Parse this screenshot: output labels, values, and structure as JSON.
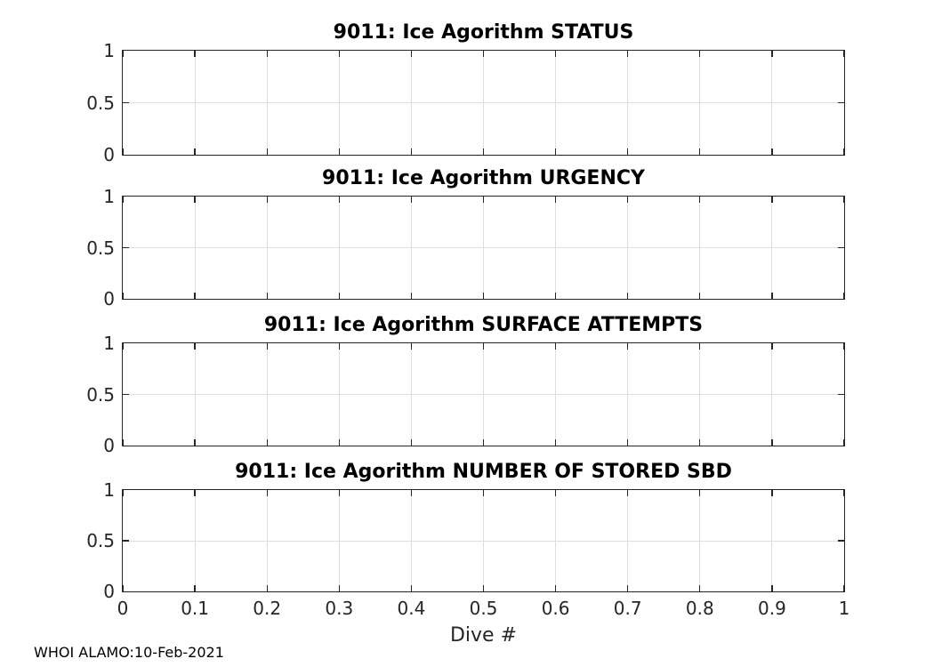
{
  "figure": {
    "background": "#ffffff",
    "axis_color": "#262626",
    "grid_color": "#dedede",
    "title_color": "#000000",
    "xlabel": "Dive #",
    "footer": "WHOI ALAMO:10-Feb-2021"
  },
  "chart_data": [
    {
      "type": "line",
      "title": "9011: Ice Agorithm STATUS",
      "series": [],
      "xlim": [
        0,
        1
      ],
      "ylim": [
        0,
        1
      ],
      "xticks": [
        0,
        0.1,
        0.2,
        0.3,
        0.4,
        0.5,
        0.6,
        0.7,
        0.8,
        0.9,
        1
      ],
      "yticks": [
        0,
        0.5,
        1
      ],
      "ytick_labels": [
        "0",
        "0.5",
        "1"
      ],
      "xtick_labels": [],
      "grid": true,
      "legend": "none"
    },
    {
      "type": "line",
      "title": "9011: Ice Agorithm URGENCY",
      "series": [],
      "xlim": [
        0,
        1
      ],
      "ylim": [
        0,
        1
      ],
      "xticks": [
        0,
        0.1,
        0.2,
        0.3,
        0.4,
        0.5,
        0.6,
        0.7,
        0.8,
        0.9,
        1
      ],
      "yticks": [
        0,
        0.5,
        1
      ],
      "ytick_labels": [
        "0",
        "0.5",
        "1"
      ],
      "xtick_labels": [],
      "grid": true,
      "legend": "none"
    },
    {
      "type": "line",
      "title": "9011: Ice Agorithm SURFACE ATTEMPTS",
      "series": [],
      "xlim": [
        0,
        1
      ],
      "ylim": [
        0,
        1
      ],
      "xticks": [
        0,
        0.1,
        0.2,
        0.3,
        0.4,
        0.5,
        0.6,
        0.7,
        0.8,
        0.9,
        1
      ],
      "yticks": [
        0,
        0.5,
        1
      ],
      "ytick_labels": [
        "0",
        "0.5",
        "1"
      ],
      "xtick_labels": [],
      "grid": true,
      "legend": "none"
    },
    {
      "type": "line",
      "title": "9011: Ice Agorithm NUMBER OF STORED SBD",
      "series": [],
      "xlim": [
        0,
        1
      ],
      "ylim": [
        0,
        1
      ],
      "xticks": [
        0,
        0.1,
        0.2,
        0.3,
        0.4,
        0.5,
        0.6,
        0.7,
        0.8,
        0.9,
        1
      ],
      "yticks": [
        0,
        0.5,
        1
      ],
      "ytick_labels": [
        "0",
        "0.5",
        "1"
      ],
      "xtick_labels": [
        "0",
        "0.1",
        "0.2",
        "0.3",
        "0.4",
        "0.5",
        "0.6",
        "0.7",
        "0.8",
        "0.9",
        "1"
      ],
      "xlabel": "Dive #",
      "grid": true,
      "legend": "none"
    }
  ]
}
